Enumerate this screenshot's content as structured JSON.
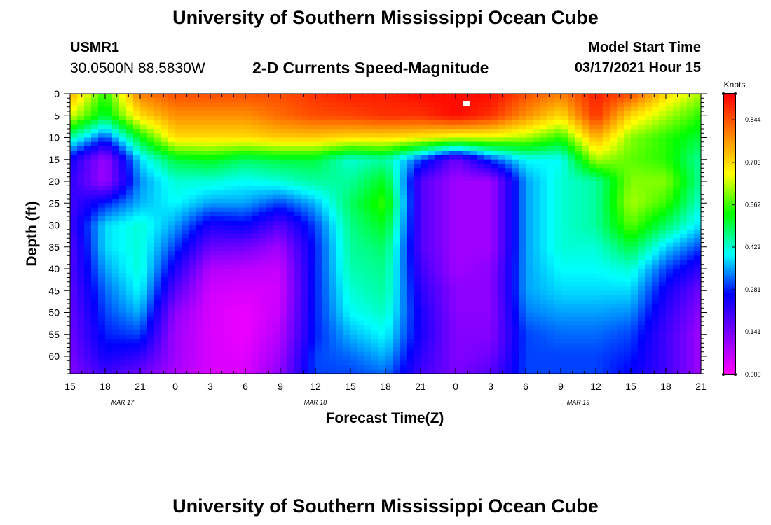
{
  "header": {
    "title": "University of Southern Mississippi Ocean Cube",
    "station": "USMR1",
    "coords": "30.0500N 88.5830W",
    "subtitle": "2-D Currents Speed-Magnitude",
    "model_start_label": "Model Start Time",
    "model_start_value": "03/17/2021 Hour 15"
  },
  "footer": {
    "title": "University of Southern Mississippi Ocean Cube"
  },
  "chart_data": {
    "type": "heatmap",
    "title": "2-D Currents Speed-Magnitude",
    "xlabel": "Forecast Time(Z)",
    "ylabel": "Depth (ft)",
    "x_tick_labels": [
      "15",
      "18",
      "21",
      "0",
      "3",
      "6",
      "9",
      "12",
      "15",
      "18",
      "21",
      "0",
      "3",
      "6",
      "9",
      "12",
      "15",
      "18",
      "21"
    ],
    "x_hours": [
      0,
      3,
      6,
      9,
      12,
      15,
      18,
      21,
      24,
      27,
      30,
      33,
      36,
      39,
      42,
      45,
      48,
      51,
      54
    ],
    "date_labels": [
      {
        "text": "MAR 17",
        "hour": 4.5
      },
      {
        "text": "MAR 18",
        "hour": 21
      },
      {
        "text": "MAR 19",
        "hour": 43.5
      }
    ],
    "y_ticks": [
      0,
      5,
      10,
      15,
      20,
      25,
      30,
      35,
      40,
      45,
      50,
      55,
      60
    ],
    "ylim": [
      0,
      64
    ],
    "xlim": [
      0,
      54
    ],
    "colorbar": {
      "unit_label": "Knots",
      "tick_labels": [
        "0.844",
        "0.703",
        "0.562",
        "0.422",
        "0.281",
        "0.141",
        "0.000"
      ],
      "tick_values": [
        0.844,
        0.703,
        0.562,
        0.422,
        0.281,
        0.141,
        0.0
      ],
      "range": [
        0,
        0.93
      ],
      "colors": [
        "#ff00ff",
        "#8000ff",
        "#0000ff",
        "#00ffff",
        "#00ff00",
        "#ffff00",
        "#ff8000",
        "#ff0000"
      ]
    },
    "series": [
      {
        "name": "hour_0",
        "hour": 0,
        "depths": [
          0,
          5,
          10,
          15,
          20,
          25,
          30,
          35,
          40,
          45,
          50,
          55,
          60,
          64
        ],
        "values": [
          0.75,
          0.65,
          0.45,
          0.25,
          0.22,
          0.2,
          0.2,
          0.18,
          0.18,
          0.17,
          0.16,
          0.15,
          0.14,
          0.13
        ]
      },
      {
        "name": "hour_3",
        "hour": 3,
        "depths": [
          0,
          5,
          10,
          15,
          20,
          25,
          30,
          35,
          40,
          45,
          50,
          55,
          60,
          64
        ],
        "values": [
          0.55,
          0.5,
          0.3,
          0.1,
          0.1,
          0.28,
          0.38,
          0.38,
          0.35,
          0.32,
          0.3,
          0.28,
          0.25,
          0.2
        ]
      },
      {
        "name": "hour_6",
        "hour": 6,
        "depths": [
          0,
          5,
          10,
          15,
          20,
          25,
          30,
          35,
          40,
          45,
          50,
          55,
          60,
          64
        ],
        "values": [
          0.8,
          0.7,
          0.52,
          0.38,
          0.34,
          0.36,
          0.42,
          0.42,
          0.42,
          0.4,
          0.36,
          0.3,
          0.22,
          0.15
        ]
      },
      {
        "name": "hour_9",
        "hour": 9,
        "depths": [
          0,
          5,
          10,
          15,
          20,
          25,
          30,
          35,
          40,
          45,
          50,
          55,
          60,
          64
        ],
        "values": [
          0.85,
          0.78,
          0.7,
          0.5,
          0.42,
          0.4,
          0.35,
          0.3,
          0.24,
          0.18,
          0.12,
          0.1,
          0.1,
          0.09
        ]
      },
      {
        "name": "hour_12",
        "hour": 12,
        "depths": [
          0,
          5,
          10,
          15,
          20,
          25,
          30,
          35,
          40,
          45,
          50,
          55,
          60,
          64
        ],
        "values": [
          0.85,
          0.78,
          0.7,
          0.52,
          0.42,
          0.35,
          0.24,
          0.16,
          0.08,
          0.05,
          0.04,
          0.04,
          0.04,
          0.04
        ]
      },
      {
        "name": "hour_15",
        "hour": 15,
        "depths": [
          0,
          5,
          10,
          15,
          20,
          25,
          30,
          35,
          40,
          45,
          50,
          55,
          60,
          64
        ],
        "values": [
          0.85,
          0.78,
          0.7,
          0.48,
          0.4,
          0.35,
          0.26,
          0.15,
          0.07,
          0.04,
          0.02,
          0.02,
          0.03,
          0.04
        ]
      },
      {
        "name": "hour_18",
        "hour": 18,
        "depths": [
          0,
          5,
          10,
          15,
          20,
          25,
          30,
          35,
          40,
          45,
          50,
          55,
          60,
          64
        ],
        "values": [
          0.85,
          0.82,
          0.72,
          0.5,
          0.42,
          0.3,
          0.18,
          0.1,
          0.06,
          0.05,
          0.06,
          0.08,
          0.1,
          0.12
        ]
      },
      {
        "name": "hour_21",
        "hour": 21,
        "depths": [
          0,
          5,
          10,
          15,
          20,
          25,
          30,
          35,
          40,
          45,
          50,
          55,
          60,
          64
        ],
        "values": [
          0.88,
          0.85,
          0.72,
          0.5,
          0.45,
          0.36,
          0.3,
          0.28,
          0.28,
          0.28,
          0.28,
          0.28,
          0.3,
          0.3
        ]
      },
      {
        "name": "hour_24",
        "hour": 24,
        "depths": [
          0,
          5,
          10,
          15,
          20,
          25,
          30,
          35,
          40,
          45,
          50,
          55,
          60,
          64
        ],
        "values": [
          0.9,
          0.86,
          0.7,
          0.42,
          0.45,
          0.48,
          0.46,
          0.45,
          0.44,
          0.42,
          0.4,
          0.36,
          0.32,
          0.3
        ]
      },
      {
        "name": "hour_27",
        "hour": 27,
        "depths": [
          0,
          5,
          10,
          15,
          20,
          25,
          30,
          35,
          40,
          45,
          50,
          55,
          60,
          64
        ],
        "values": [
          0.9,
          0.88,
          0.7,
          0.45,
          0.52,
          0.56,
          0.52,
          0.48,
          0.46,
          0.45,
          0.43,
          0.4,
          0.36,
          0.32
        ]
      },
      {
        "name": "hour_30",
        "hour": 30,
        "depths": [
          0,
          5,
          10,
          15,
          20,
          25,
          30,
          35,
          40,
          45,
          50,
          55,
          60,
          64
        ],
        "values": [
          0.92,
          0.88,
          0.68,
          0.3,
          0.18,
          0.18,
          0.18,
          0.18,
          0.2,
          0.22,
          0.24,
          0.24,
          0.22,
          0.2
        ]
      },
      {
        "name": "hour_33",
        "hour": 33,
        "depths": [
          0,
          5,
          10,
          15,
          20,
          25,
          30,
          35,
          40,
          45,
          50,
          55,
          60,
          64
        ],
        "values": [
          0.92,
          0.92,
          0.65,
          0.15,
          0.1,
          0.1,
          0.1,
          0.1,
          0.1,
          0.12,
          0.12,
          0.13,
          0.13,
          0.14
        ]
      },
      {
        "name": "hour_36",
        "hour": 36,
        "depths": [
          0,
          5,
          10,
          15,
          20,
          25,
          30,
          35,
          40,
          45,
          50,
          55,
          60,
          64
        ],
        "values": [
          0.92,
          0.88,
          0.65,
          0.3,
          0.1,
          0.1,
          0.1,
          0.1,
          0.12,
          0.12,
          0.12,
          0.13,
          0.15,
          0.18
        ]
      },
      {
        "name": "hour_39",
        "hour": 39,
        "depths": [
          0,
          5,
          10,
          15,
          20,
          25,
          30,
          35,
          40,
          45,
          50,
          55,
          60,
          64
        ],
        "values": [
          0.85,
          0.78,
          0.62,
          0.4,
          0.35,
          0.35,
          0.35,
          0.35,
          0.35,
          0.35,
          0.33,
          0.3,
          0.3,
          0.3
        ]
      },
      {
        "name": "hour_42",
        "hour": 42,
        "depths": [
          0,
          5,
          10,
          15,
          20,
          25,
          30,
          35,
          40,
          45,
          50,
          55,
          60,
          64
        ],
        "values": [
          0.8,
          0.7,
          0.55,
          0.4,
          0.42,
          0.42,
          0.42,
          0.42,
          0.4,
          0.38,
          0.35,
          0.32,
          0.3,
          0.3
        ]
      },
      {
        "name": "hour_45",
        "hour": 45,
        "depths": [
          0,
          5,
          10,
          15,
          20,
          25,
          30,
          35,
          40,
          45,
          50,
          55,
          60,
          64
        ],
        "values": [
          0.9,
          0.88,
          0.75,
          0.62,
          0.45,
          0.45,
          0.45,
          0.42,
          0.4,
          0.38,
          0.35,
          0.32,
          0.3,
          0.3
        ]
      },
      {
        "name": "hour_48",
        "hour": 48,
        "depths": [
          0,
          5,
          10,
          15,
          20,
          25,
          30,
          35,
          40,
          45,
          50,
          55,
          60,
          64
        ],
        "values": [
          0.85,
          0.7,
          0.6,
          0.58,
          0.6,
          0.62,
          0.58,
          0.5,
          0.42,
          0.38,
          0.34,
          0.3,
          0.28,
          0.26
        ]
      },
      {
        "name": "hour_51",
        "hour": 51,
        "depths": [
          0,
          5,
          10,
          15,
          20,
          25,
          30,
          35,
          40,
          45,
          50,
          55,
          60,
          64
        ],
        "values": [
          0.7,
          0.62,
          0.55,
          0.55,
          0.6,
          0.56,
          0.48,
          0.38,
          0.3,
          0.25,
          0.22,
          0.2,
          0.2,
          0.2
        ]
      },
      {
        "name": "hour_54",
        "hour": 54,
        "depths": [
          0,
          5,
          10,
          15,
          20,
          25,
          30,
          35,
          40,
          45,
          50,
          55,
          60,
          64
        ],
        "values": [
          0.62,
          0.55,
          0.5,
          0.45,
          0.45,
          0.42,
          0.38,
          0.3,
          0.22,
          0.15,
          0.12,
          0.1,
          0.1,
          0.1
        ]
      }
    ]
  }
}
